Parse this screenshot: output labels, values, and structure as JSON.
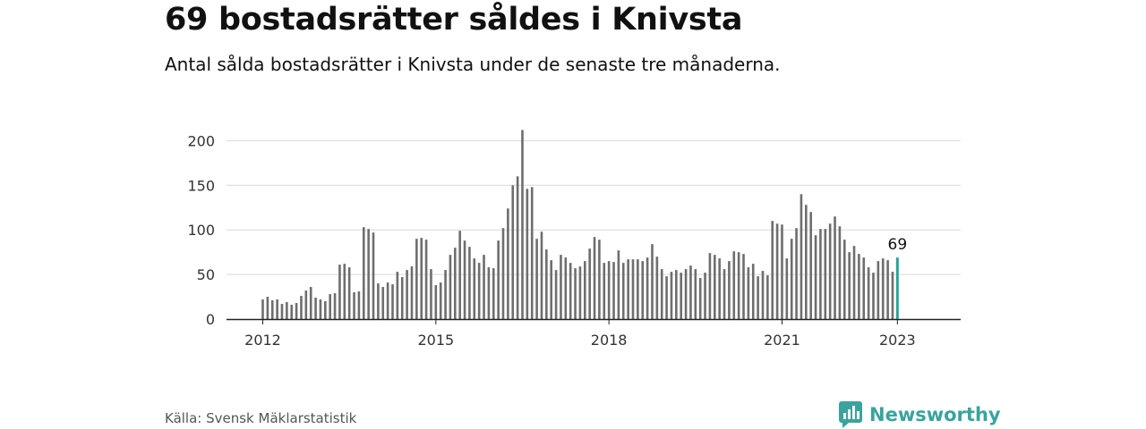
{
  "title": "69 bostadsrätter såldes i Knivsta",
  "subtitle": "Antal sålda bostadsrätter i Knivsta under de senaste tre månaderna.",
  "source": "Källa: Svensk Mäklarstatistik",
  "brand": {
    "name": "Newsworthy",
    "icon": "newsworthy-logo-icon"
  },
  "colors": {
    "bar": "#6e6e6e",
    "highlight": "#26a69a",
    "grid": "#d9d9d9",
    "axis": "#222222",
    "brand": "#3aa39d"
  },
  "chart_data": {
    "type": "bar",
    "title": "69 bostadsrätter såldes i Knivsta",
    "xlabel": "",
    "ylabel": "",
    "ylim": [
      0,
      215
    ],
    "yticks": [
      0,
      50,
      100,
      150,
      200
    ],
    "xticks": [
      "2012",
      "2015",
      "2018",
      "2021",
      "2023"
    ],
    "grid": true,
    "highlight_label": "69",
    "x_start": "2012-01",
    "x_end": "2023-01",
    "values": [
      22,
      25,
      21,
      22,
      17,
      19,
      16,
      18,
      26,
      32,
      36,
      24,
      22,
      20,
      28,
      29,
      61,
      62,
      58,
      30,
      31,
      103,
      101,
      97,
      40,
      36,
      41,
      39,
      53,
      47,
      55,
      59,
      90,
      91,
      89,
      56,
      38,
      41,
      55,
      72,
      80,
      99,
      88,
      81,
      68,
      63,
      72,
      58,
      57,
      88,
      102,
      124,
      150,
      160,
      212,
      146,
      148,
      90,
      98,
      78,
      66,
      55,
      72,
      69,
      63,
      57,
      59,
      65,
      79,
      92,
      89,
      63,
      65,
      64,
      77,
      63,
      67,
      67,
      67,
      65,
      69,
      84,
      70,
      56,
      48,
      53,
      55,
      52,
      56,
      60,
      56,
      46,
      52,
      74,
      72,
      68,
      56,
      65,
      76,
      75,
      73,
      58,
      62,
      48,
      54,
      49,
      110,
      107,
      106,
      68,
      90,
      102,
      140,
      128,
      120,
      94,
      101,
      101,
      107,
      115,
      104,
      89,
      75,
      82,
      73,
      69,
      58,
      52,
      65,
      68,
      66,
      53,
      69
    ]
  }
}
